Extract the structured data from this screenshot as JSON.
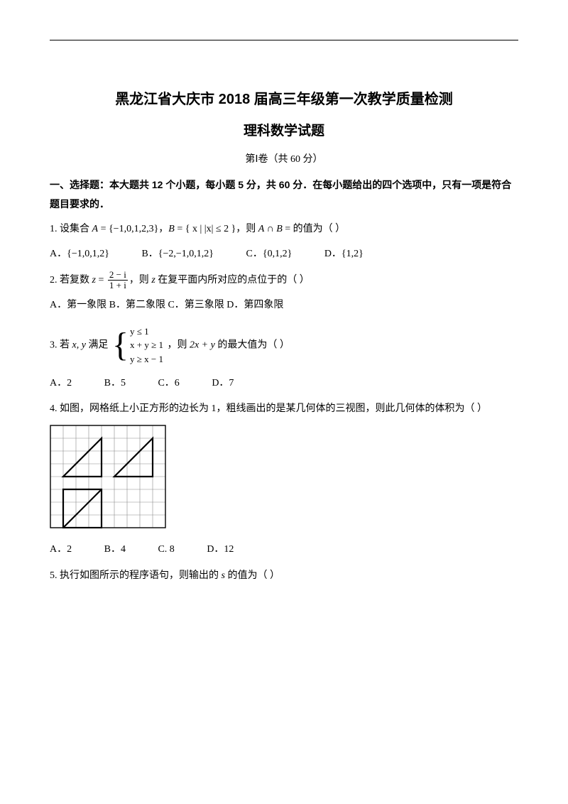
{
  "header": {
    "title_line1": "黑龙江省大庆市 2018 届高三年级第一次教学质量检测",
    "title_line2": "理科数学试题",
    "part_label": "第Ⅰ卷（共 60 分）"
  },
  "section1": {
    "heading": "一、选择题：本大题共 12 个小题，每小题 5 分，共 60 分．在每小题给出的四个选项中，只有一项是符合题目要求的．"
  },
  "q1": {
    "prefix": "1. 设集合 ",
    "setA_lhs": "A",
    "setA_rhs": " = {−1,0,1,2,3}，",
    "setB_lhs": "B",
    "setB_rhs": " = { x | |x| ≤ 2 }，则 ",
    "expr": "A ∩ B",
    "tail": " = 的值为（  ）",
    "optA": "A．{−1,0,1,2}",
    "optB": "B．{−2,−1,0,1,2}",
    "optC": "C．{0,1,2}",
    "optD": "D．{1,2}"
  },
  "q2": {
    "prefix": "2. 若复数 ",
    "z": "z",
    "eq": " = ",
    "num": "2 − i",
    "den": "1 + i",
    "mid": "，则 ",
    "z2": "z",
    "tail": " 在复平面内所对应的点位于的（  ）",
    "opts": "A．第一象限  B．第二象限  C．第三象限  D．第四象限"
  },
  "q3": {
    "prefix": "3. 若 ",
    "xy": "x, y",
    "mid1": " 满足 ",
    "l1": "y ≤ 1",
    "l2": "x + y ≥ 1",
    "l3": "y ≥ x − 1",
    "mid2": "，则 ",
    "expr": "2x + y",
    "tail": " 的最大值为（  ）",
    "optA": "A．2",
    "optB": "B．5",
    "optC": "C．6",
    "optD": "D．7"
  },
  "q4": {
    "text": "4. 如图，网格纸上小正方形的边长为 1，粗线画出的是某几何体的三视图，则此几何体的体积为（  ）",
    "optA": "A．2",
    "optB": "B．4",
    "optC": "C. 8",
    "optD": "D．12",
    "grid": {
      "cols": 9,
      "rows": 8,
      "cell": 18,
      "stroke_thin": "#8a8a8a",
      "stroke_bold": "#000000",
      "stroke_w_thin": 0.6,
      "stroke_w_bold": 2.2,
      "border_w": 1.4
    }
  },
  "q5": {
    "text_a": "5. 执行如图所示的程序语句，则输出的 ",
    "s": "s",
    "text_b": " 的值为（  ）"
  },
  "style": {
    "page_bg": "#ffffff",
    "text_color": "#000000",
    "body_fontsize": 14,
    "title_fontsize": 20
  }
}
